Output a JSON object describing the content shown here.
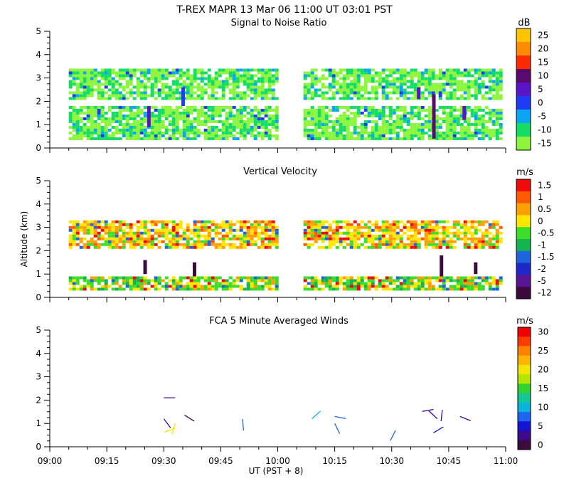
{
  "header": {
    "title": "T-REX   MAPR 13 Mar 06   11:00 UT   03:01   PST"
  },
  "colors": {
    "axis": "#000000",
    "background": "#ffffff"
  },
  "chart_data": [
    {
      "type": "heatmap",
      "title": "Signal to Noise Ratio",
      "units": "dB",
      "ylim": [
        0,
        5
      ],
      "yticks": [
        "0",
        "1",
        "2",
        "3",
        "4",
        "5"
      ],
      "x_time_range": [
        "09:00",
        "11:00"
      ],
      "data_gap": [
        "10:00",
        "10:06"
      ],
      "colorbar": {
        "labels": [
          "25",
          "20",
          "15",
          "10",
          "5",
          "0",
          "-5",
          "-10",
          "-15"
        ],
        "colors": [
          "#ffc400",
          "#ff8c00",
          "#ff2a00",
          "#5a0a6e",
          "#5a14c8",
          "#1e3cf5",
          "#0aa5f5",
          "#14dc64",
          "#8cf53c"
        ]
      },
      "layers": [
        {
          "bottom": 2.1,
          "top": 3.4,
          "dominant": "-15 to -10 dB"
        },
        {
          "bottom": 0.4,
          "top": 1.8,
          "dominant": "-15 to -10 dB"
        }
      ],
      "features": [
        {
          "time": "09:26",
          "bottom": 0.9,
          "top": 1.8,
          "level": "5"
        },
        {
          "time": "09:35",
          "bottom": 1.8,
          "top": 2.6,
          "level": "0"
        },
        {
          "time": "10:37",
          "bottom": 2.1,
          "top": 2.6,
          "level": "5"
        },
        {
          "time": "10:41",
          "bottom": 0.4,
          "top": 2.3,
          "level": "10"
        },
        {
          "time": "10:49",
          "bottom": 1.2,
          "top": 1.8,
          "level": "5"
        }
      ]
    },
    {
      "type": "heatmap",
      "title": "Vertical Velocity",
      "units": "m/s",
      "ylabel": "Altitude (km)",
      "ylim": [
        0,
        5
      ],
      "yticks": [
        "0",
        "1",
        "2",
        "3",
        "4",
        "5"
      ],
      "x_time_range": [
        "09:00",
        "11:00"
      ],
      "data_gap": [
        "10:00",
        "10:06"
      ],
      "colorbar": {
        "labels": [
          "1.5",
          "1",
          "0.5",
          "0",
          "-0.5",
          "-1",
          "-1.5",
          "-2",
          "-5",
          "-12"
        ],
        "colors": [
          "#f00a0a",
          "#ff5a00",
          "#ffa000",
          "#ffe600",
          "#3cdc28",
          "#14b450",
          "#1e64dc",
          "#1e28c8",
          "#5a1496",
          "#3c0a3c"
        ]
      },
      "layers": [
        {
          "bottom": 2.2,
          "top": 3.3,
          "dominant": "0 to 0.5 m/s"
        },
        {
          "bottom": 0.3,
          "top": 0.9,
          "dominant": "-0.5 to 0 m/s"
        }
      ],
      "features": [
        {
          "time": "09:25",
          "bottom": 1.0,
          "top": 1.6,
          "level": "-12"
        },
        {
          "time": "09:38",
          "bottom": 0.9,
          "top": 1.5,
          "level": "-12"
        },
        {
          "time": "10:43",
          "bottom": 0.9,
          "top": 1.8,
          "level": "-12"
        },
        {
          "time": "10:52",
          "bottom": 1.0,
          "top": 1.5,
          "level": "-12"
        }
      ]
    },
    {
      "type": "scatter",
      "title": "FCA 5 Minute Averaged Winds",
      "units": "m/s",
      "xlabel": "UT  (PST + 8)",
      "ylim": [
        0,
        5
      ],
      "yticks": [
        "0",
        "1",
        "2",
        "3",
        "4",
        "5"
      ],
      "xticks": [
        "09:00",
        "09:15",
        "09:30",
        "09:45",
        "10:00",
        "10:15",
        "10:30",
        "10:45",
        "11:00"
      ],
      "colorbar": {
        "labels": [
          "30",
          "25",
          "20",
          "15",
          "10",
          "5",
          "0"
        ],
        "colors": [
          "#f00000",
          "#ff3c00",
          "#ff8200",
          "#ffb400",
          "#f0e600",
          "#b4e600",
          "#32d232",
          "#14c896",
          "#0ab4dc",
          "#1e64f0",
          "#1414d2",
          "#3c0a8c",
          "#3c0a3c"
        ]
      },
      "wind_barbs": [
        {
          "time": "09:30",
          "altitude": 2.1,
          "speed": 3
        },
        {
          "time": "09:30",
          "altitude": 1.2,
          "speed": 4
        },
        {
          "time": "09:33",
          "altitude": 1.0,
          "speed": 22
        },
        {
          "time": "09:33",
          "altitude": 0.8,
          "speed": 22
        },
        {
          "time": "09:38",
          "altitude": 1.1,
          "speed": 2
        },
        {
          "time": "09:51",
          "altitude": 0.7,
          "speed": 9
        },
        {
          "time": "10:09",
          "altitude": 1.2,
          "speed": 12
        },
        {
          "time": "10:15",
          "altitude": 1.3,
          "speed": 9
        },
        {
          "time": "10:15",
          "altitude": 1.0,
          "speed": 9
        },
        {
          "time": "10:31",
          "altitude": 0.7,
          "speed": 9
        },
        {
          "time": "10:41",
          "altitude": 1.6,
          "speed": 3
        },
        {
          "time": "10:42",
          "altitude": 1.2,
          "speed": 3
        },
        {
          "time": "10:43",
          "altitude": 1.1,
          "speed": 3
        },
        {
          "time": "10:41",
          "altitude": 0.6,
          "speed": 5
        },
        {
          "time": "10:48",
          "altitude": 1.3,
          "speed": 3
        }
      ]
    }
  ]
}
